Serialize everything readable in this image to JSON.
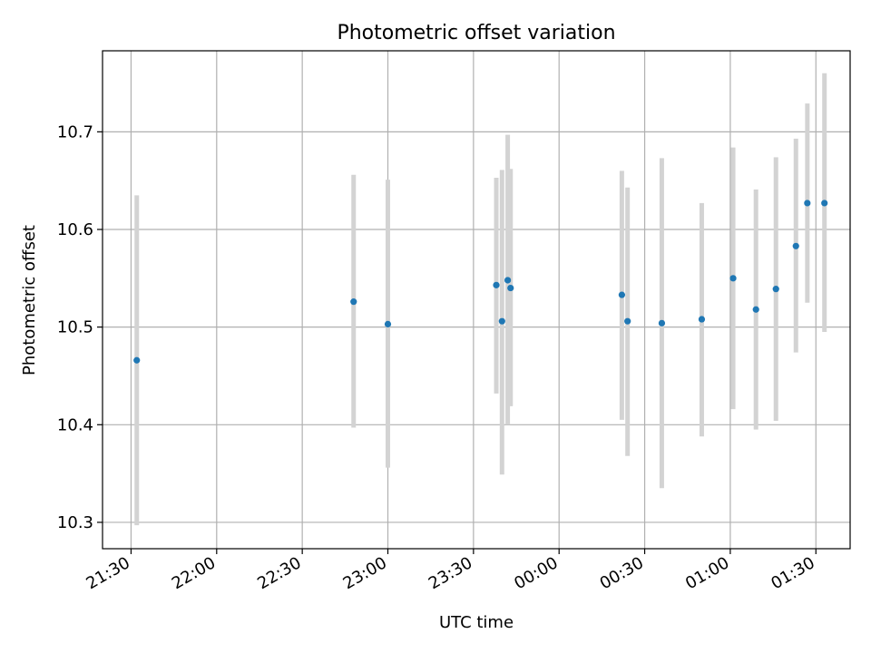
{
  "chart_data": {
    "type": "scatter",
    "title": "Photometric offset variation",
    "xlabel": "UTC time",
    "ylabel": "Photometric offset",
    "xlim": [
      "21:20",
      "01:42"
    ],
    "ylim": [
      10.273,
      10.783
    ],
    "x_ticks": [
      "21:30",
      "22:00",
      "22:30",
      "23:00",
      "23:30",
      "00:00",
      "00:30",
      "01:00",
      "01:30"
    ],
    "y_ticks": [
      10.3,
      10.4,
      10.5,
      10.6,
      10.7
    ],
    "grid": true,
    "colors": {
      "point": "#1f77b4",
      "errorbar": "#d3d3d3",
      "grid": "#b0b0b0"
    },
    "points": [
      {
        "time": "21:32",
        "y": 10.466,
        "ylow": 10.297,
        "yhigh": 10.635
      },
      {
        "time": "22:48",
        "y": 10.526,
        "ylow": 10.397,
        "yhigh": 10.656
      },
      {
        "time": "23:00",
        "y": 10.503,
        "ylow": 10.356,
        "yhigh": 10.651
      },
      {
        "time": "23:38",
        "y": 10.543,
        "ylow": 10.432,
        "yhigh": 10.653
      },
      {
        "time": "23:40",
        "y": 10.506,
        "ylow": 10.349,
        "yhigh": 10.661
      },
      {
        "time": "23:42",
        "y": 10.548,
        "ylow": 10.4,
        "yhigh": 10.697
      },
      {
        "time": "23:43",
        "y": 10.54,
        "ylow": 10.419,
        "yhigh": 10.662
      },
      {
        "time": "00:22",
        "y": 10.533,
        "ylow": 10.405,
        "yhigh": 10.66
      },
      {
        "time": "00:24",
        "y": 10.506,
        "ylow": 10.368,
        "yhigh": 10.643
      },
      {
        "time": "00:36",
        "y": 10.504,
        "ylow": 10.335,
        "yhigh": 10.673
      },
      {
        "time": "00:50",
        "y": 10.508,
        "ylow": 10.388,
        "yhigh": 10.627
      },
      {
        "time": "01:01",
        "y": 10.55,
        "ylow": 10.416,
        "yhigh": 10.684
      },
      {
        "time": "01:09",
        "y": 10.518,
        "ylow": 10.395,
        "yhigh": 10.641
      },
      {
        "time": "01:16",
        "y": 10.539,
        "ylow": 10.404,
        "yhigh": 10.674
      },
      {
        "time": "01:23",
        "y": 10.583,
        "ylow": 10.474,
        "yhigh": 10.693
      },
      {
        "time": "01:27",
        "y": 10.627,
        "ylow": 10.525,
        "yhigh": 10.729
      },
      {
        "time": "01:33",
        "y": 10.627,
        "ylow": 10.495,
        "yhigh": 10.76
      }
    ]
  }
}
